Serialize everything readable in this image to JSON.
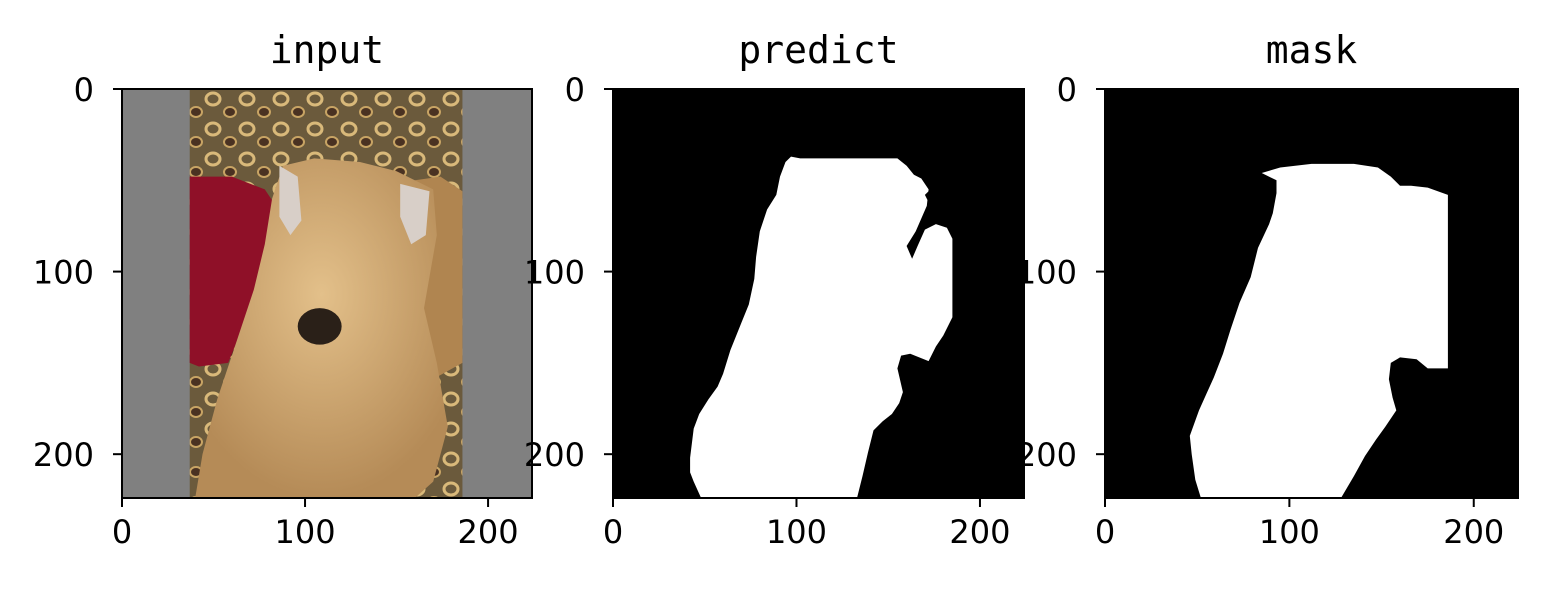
{
  "chart_data": [
    {
      "type": "image",
      "title": "input",
      "xlim": [
        0,
        224
      ],
      "ylim": [
        224,
        0
      ],
      "xticks": [
        0,
        100,
        200
      ],
      "yticks": [
        0,
        100,
        200
      ],
      "content": "photo of a wheaten terrier dog on a patterned couch with a red pillow, letterboxed with gray side bars",
      "colors": {
        "padding": "#808080",
        "fur": "#c9a36f",
        "pillow": "#8f1028",
        "couch": "#6e5a3a"
      }
    },
    {
      "type": "image",
      "title": "predict",
      "xlim": [
        0,
        224
      ],
      "ylim": [
        224,
        0
      ],
      "xticks": [
        0,
        100,
        200
      ],
      "yticks": [
        0,
        100,
        200
      ],
      "content": "binary segmentation prediction (white foreground on black)",
      "colors": {
        "background": "#000000",
        "foreground": "#ffffff"
      }
    },
    {
      "type": "image",
      "title": "mask",
      "xlim": [
        0,
        224
      ],
      "ylim": [
        224,
        0
      ],
      "xticks": [
        0,
        100,
        200
      ],
      "yticks": [
        0,
        100,
        200
      ],
      "content": "binary ground-truth mask (white foreground on black)",
      "colors": {
        "background": "#000000",
        "foreground": "#ffffff"
      }
    }
  ]
}
